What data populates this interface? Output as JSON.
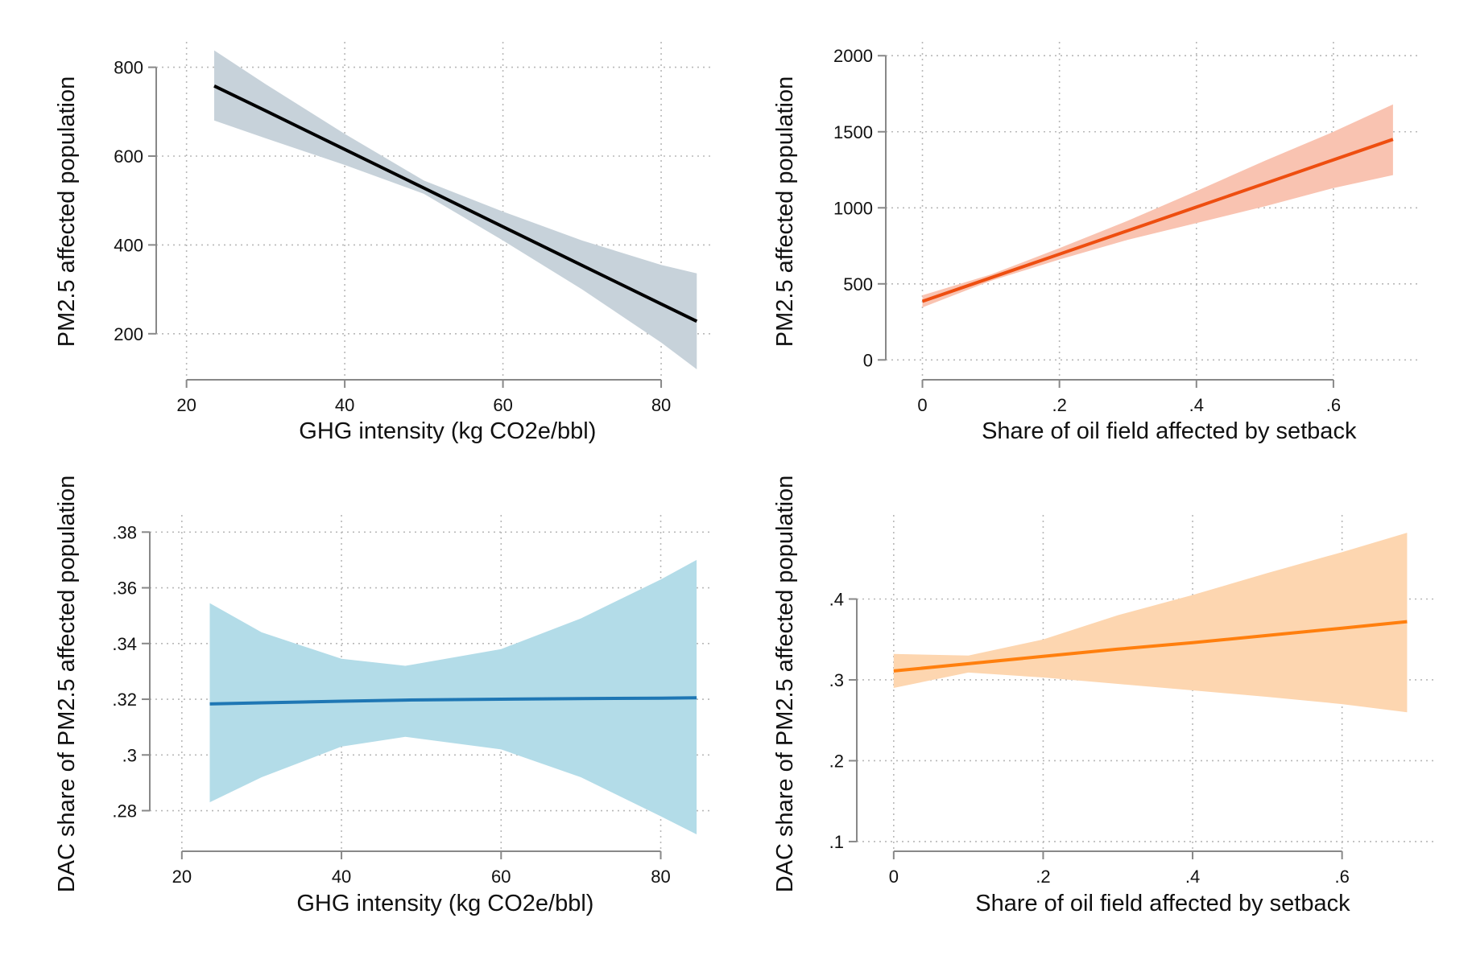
{
  "chart_data": [
    {
      "type": "line",
      "xlabel": "GHG intensity (kg CO2e/bbl)",
      "ylabel": "PM2.5 affected population",
      "xlim": [
        18,
        86
      ],
      "ylim": [
        100,
        850
      ],
      "x_ticks": [
        20,
        40,
        60,
        80
      ],
      "x_tick_labels": [
        "20",
        "40",
        "60",
        "80"
      ],
      "y_ticks": [
        200,
        400,
        600,
        800
      ],
      "y_tick_labels": [
        "200",
        "400",
        "600",
        "800"
      ],
      "grid": true,
      "line_color": "#000000",
      "band_color": "#c7d2da",
      "series": [
        {
          "x": [
            23.5,
            30,
            40,
            50,
            60,
            70,
            80,
            84.5
          ],
          "y": [
            758,
            702,
            615,
            528,
            441,
            354,
            267,
            228
          ],
          "ci_lower": [
            680,
            640,
            580,
            515,
            410,
            300,
            180,
            120
          ],
          "ci_upper": [
            838,
            762,
            650,
            545,
            475,
            410,
            355,
            336
          ]
        }
      ]
    },
    {
      "type": "line",
      "xlabel": "Share of oil field affected by setback",
      "ylabel": "PM2.5 affected population",
      "xlim": [
        -0.03,
        0.72
      ],
      "ylim": [
        -120,
        2070
      ],
      "x_ticks": [
        0,
        0.2,
        0.4,
        0.6
      ],
      "x_tick_labels": [
        "0",
        ".2",
        ".4",
        ".6"
      ],
      "y_ticks": [
        0,
        500,
        1000,
        1500,
        2000
      ],
      "y_tick_labels": [
        "0",
        "500",
        "1000",
        "1500",
        "2000"
      ],
      "grid": true,
      "line_color": "#ee4e10",
      "band_color": "#f9c3b1",
      "series": [
        {
          "x": [
            0,
            0.1,
            0.2,
            0.3,
            0.4,
            0.5,
            0.6,
            0.687
          ],
          "y": [
            385,
            540,
            695,
            850,
            1005,
            1160,
            1315,
            1450
          ],
          "ci_lower": [
            345,
            520,
            660,
            790,
            900,
            1010,
            1130,
            1215
          ],
          "ci_upper": [
            425,
            562,
            735,
            915,
            1110,
            1310,
            1500,
            1680
          ]
        }
      ]
    },
    {
      "type": "line",
      "xlabel": "GHG intensity (kg CO2e/bbl)",
      "ylabel": "DAC share of PM2.5 affected population",
      "xlim": [
        18,
        86
      ],
      "ylim": [
        0.266,
        0.385
      ],
      "x_ticks": [
        20,
        40,
        60,
        80
      ],
      "x_tick_labels": [
        "20",
        "40",
        "60",
        "80"
      ],
      "y_ticks": [
        0.28,
        0.3,
        0.32,
        0.34,
        0.36,
        0.38
      ],
      "y_tick_labels": [
        ".28",
        ".3",
        ".32",
        ".34",
        ".36",
        ".38"
      ],
      "grid": true,
      "line_color": "#1f77b4",
      "band_color": "#b3dce8",
      "series": [
        {
          "x": [
            23.5,
            30,
            40,
            48,
            60,
            70,
            80,
            84.5
          ],
          "y": [
            0.3183,
            0.3187,
            0.3193,
            0.3197,
            0.32,
            0.3202,
            0.3204,
            0.3205
          ],
          "ci_lower": [
            0.283,
            0.292,
            0.303,
            0.3065,
            0.302,
            0.292,
            0.278,
            0.2715
          ],
          "ci_upper": [
            0.3545,
            0.344,
            0.3345,
            0.332,
            0.338,
            0.349,
            0.363,
            0.37
          ]
        }
      ]
    },
    {
      "type": "line",
      "xlabel": "Share of oil field affected by setback",
      "ylabel": "DAC share of PM2.5 affected population",
      "xlim": [
        -0.03,
        0.72
      ],
      "ylim": [
        0.09,
        0.5
      ],
      "x_ticks": [
        0,
        0.2,
        0.4,
        0.6
      ],
      "x_tick_labels": [
        "0",
        ".2",
        ".4",
        ".6"
      ],
      "y_ticks": [
        0.1,
        0.2,
        0.3,
        0.4
      ],
      "y_tick_labels": [
        ".1",
        ".2",
        ".3",
        ".4"
      ],
      "grid": true,
      "line_color": "#ff7f0e",
      "band_color": "#fdd6b0",
      "series": [
        {
          "x": [
            0,
            0.1,
            0.2,
            0.3,
            0.4,
            0.5,
            0.6,
            0.687
          ],
          "y": [
            0.311,
            0.32,
            0.329,
            0.338,
            0.346,
            0.355,
            0.364,
            0.372
          ],
          "ci_lower": [
            0.29,
            0.309,
            0.303,
            0.295,
            0.287,
            0.279,
            0.27,
            0.26
          ],
          "ci_upper": [
            0.332,
            0.33,
            0.35,
            0.38,
            0.405,
            0.432,
            0.458,
            0.482
          ]
        }
      ]
    }
  ]
}
